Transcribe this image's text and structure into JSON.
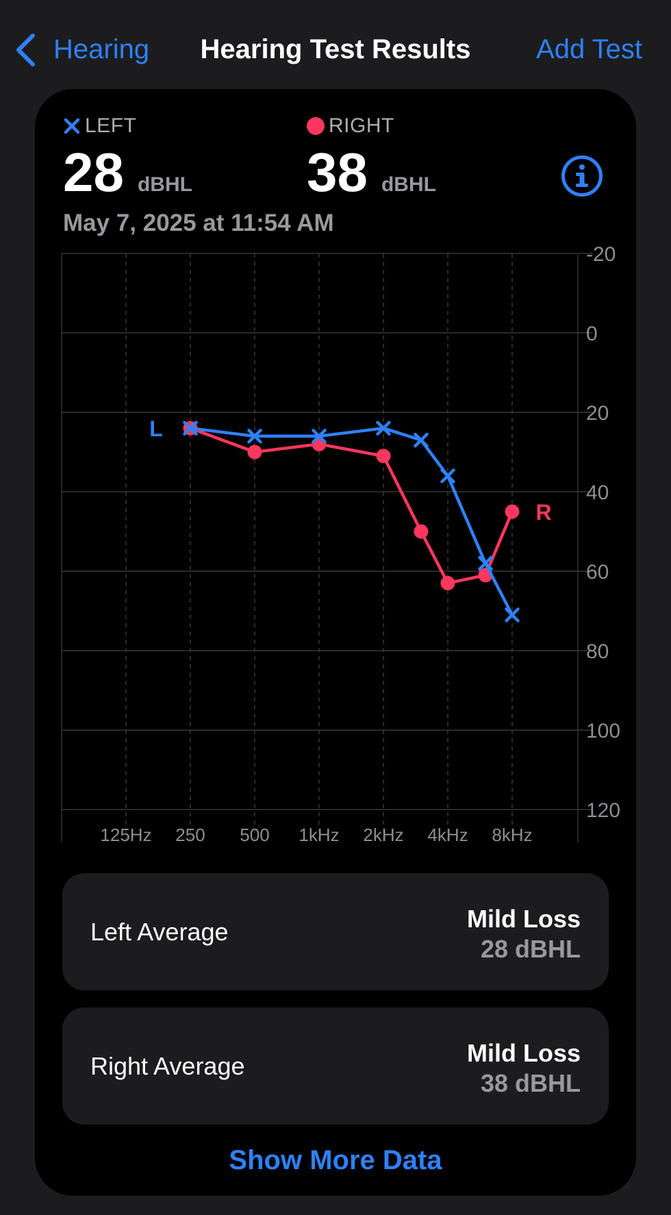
{
  "nav": {
    "back_label": "Hearing",
    "title": "Hearing Test Results",
    "add_label": "Add Test"
  },
  "summary": {
    "left": {
      "legend": "LEFT",
      "value": "28",
      "unit": "dBHL"
    },
    "right": {
      "legend": "RIGHT",
      "value": "38",
      "unit": "dBHL"
    },
    "date": "May 7, 2025 at 11:54 AM"
  },
  "chart_data": {
    "type": "line",
    "x_tick_labels": [
      "125Hz",
      "250",
      "500",
      "1kHz",
      "2kHz",
      "4kHz",
      "8kHz"
    ],
    "y_tick_labels": [
      "-20",
      "0",
      "20",
      "40",
      "60",
      "80",
      "100",
      "120"
    ],
    "ylim": [
      -20,
      120
    ],
    "y_inverted": true,
    "series": [
      {
        "name": "L",
        "color": "#2f81f7",
        "marker": "x",
        "points": [
          [
            250,
            24
          ],
          [
            500,
            26
          ],
          [
            1000,
            26
          ],
          [
            2000,
            24
          ],
          [
            3000,
            27
          ],
          [
            4000,
            36
          ],
          [
            6000,
            58
          ],
          [
            8000,
            71
          ]
        ]
      },
      {
        "name": "R",
        "color": "#ff375f",
        "marker": "dot",
        "points": [
          [
            250,
            24
          ],
          [
            500,
            30
          ],
          [
            1000,
            28
          ],
          [
            2000,
            31
          ],
          [
            3000,
            50
          ],
          [
            4000,
            63
          ],
          [
            6000,
            61
          ],
          [
            8000,
            45
          ]
        ]
      }
    ]
  },
  "averages": [
    {
      "label": "Left Average",
      "status": "Mild Loss",
      "value": "28 dBHL"
    },
    {
      "label": "Right Average",
      "status": "Mild Loss",
      "value": "38 dBHL"
    }
  ],
  "show_more": "Show More Data",
  "colors": {
    "accent": "#2f81f7",
    "right_ear": "#ff375f",
    "left_ear": "#2f81f7"
  }
}
